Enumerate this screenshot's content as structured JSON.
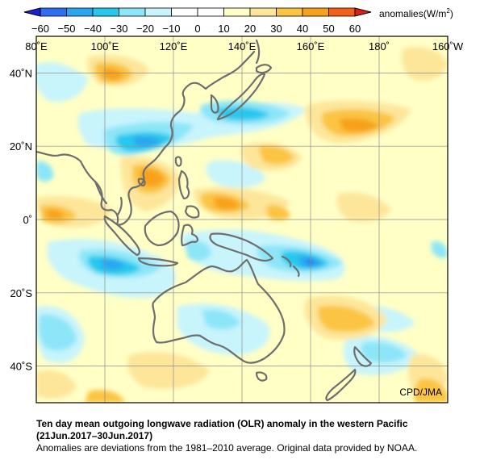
{
  "colorbar": {
    "ticks": [
      "−60",
      "−50",
      "−40",
      "−30",
      "−20",
      "−10",
      "0",
      "10",
      "20",
      "30",
      "40",
      "50",
      "60"
    ],
    "colors": [
      "#1e1ed2",
      "#2f6ef0",
      "#2aa6f0",
      "#26c8ee",
      "#8ce6f8",
      "#c8f4fc",
      "#ffffff",
      "#ffffc6",
      "#fde69a",
      "#fbc443",
      "#f8a21c",
      "#f2601a",
      "#e01e12"
    ],
    "units_prefix": "anomalies(W/m",
    "units_sup": "2",
    "units_suffix": ")"
  },
  "map": {
    "lon_labels": [
      "80˚E",
      "100˚E",
      "120˚E",
      "140˚E",
      "160˚E",
      "180˚",
      "160˚W"
    ],
    "lat_labels": [
      "40˚N",
      "20˚N",
      "0˚",
      "20˚S",
      "40˚S"
    ],
    "lon_range": [
      80,
      200
    ],
    "lat_range": [
      -50,
      50
    ],
    "credit": "CPD/JMA",
    "colors": {
      "coast": "#6e6e6e",
      "grid": "#8c8c8c",
      "base": "#ffffc6"
    }
  },
  "caption": {
    "title": "Ten day mean outgoing longwave radiation (OLR) anomaly in the western Pacific",
    "period": "(21Jun.2017–30Jun.2017)",
    "note": "Anomalies are deviations from the 1981–2010 average. Original data provided by NOAA."
  }
}
